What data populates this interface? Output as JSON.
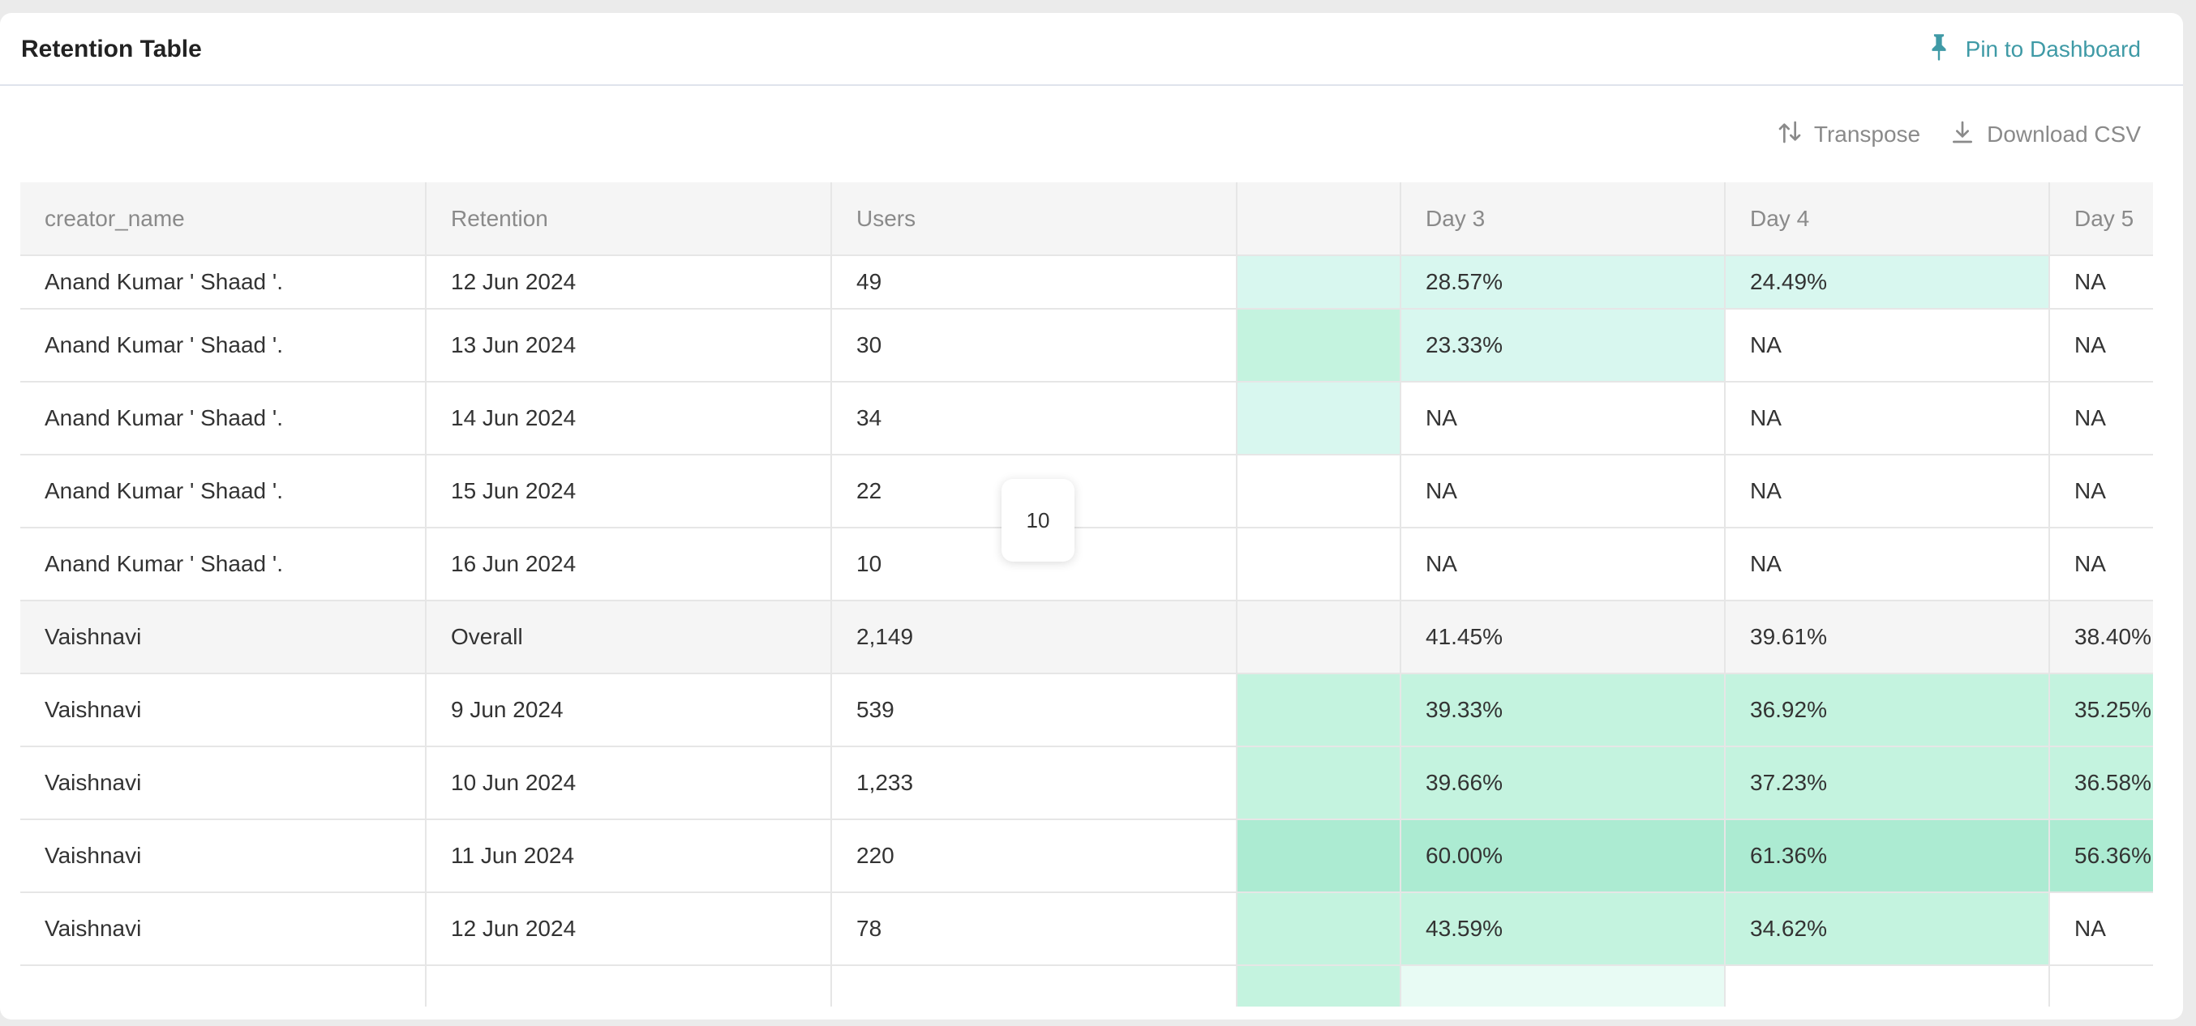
{
  "card": {
    "title": "Retention Table",
    "pin_label": "Pin to Dashboard"
  },
  "toolbar": {
    "transpose_label": "Transpose",
    "download_label": "Download CSV"
  },
  "colors": {
    "accent": "#3f9aa6",
    "cell_light": "#d8f7ef",
    "cell_mid": "#c4f3df",
    "cell_strong": "#acebd2",
    "cell_faint": "#e8fbf4"
  },
  "table": {
    "columns": [
      "creator_name",
      "Retention",
      "Users",
      "",
      "Day 3",
      "Day 4",
      "Day 5"
    ],
    "rows": [
      {
        "cells": [
          "Anand Kumar ' Shaad '.",
          "12 Jun 2024",
          "49",
          "",
          "28.57%",
          "24.49%",
          "NA"
        ],
        "shade": [
          "",
          "",
          "",
          "light",
          "light",
          "light",
          ""
        ]
      },
      {
        "cells": [
          "Anand Kumar ' Shaad '.",
          "13 Jun 2024",
          "30",
          "",
          "23.33%",
          "NA",
          "NA"
        ],
        "shade": [
          "",
          "",
          "",
          "mid",
          "light",
          "",
          ""
        ]
      },
      {
        "cells": [
          "Anand Kumar ' Shaad '.",
          "14 Jun 2024",
          "34",
          "",
          "NA",
          "NA",
          "NA"
        ],
        "shade": [
          "",
          "",
          "",
          "light",
          "",
          "",
          ""
        ]
      },
      {
        "cells": [
          "Anand Kumar ' Shaad '.",
          "15 Jun 2024",
          "22",
          "",
          "NA",
          "NA",
          "NA"
        ],
        "shade": [
          "",
          "",
          "",
          "",
          "",
          "",
          ""
        ]
      },
      {
        "cells": [
          "Anand Kumar ' Shaad '.",
          "16 Jun 2024",
          "10",
          "",
          "NA",
          "NA",
          "NA"
        ],
        "shade": [
          "",
          "",
          "",
          "",
          "",
          "",
          ""
        ]
      },
      {
        "cells": [
          "Vaishnavi",
          "Overall",
          "2,149",
          "",
          "41.45%",
          "39.61%",
          "38.40%"
        ],
        "shade": [
          "",
          "",
          "",
          "",
          "",
          "",
          ""
        ],
        "overall": true
      },
      {
        "cells": [
          "Vaishnavi",
          "9 Jun 2024",
          "539",
          "",
          "39.33%",
          "36.92%",
          "35.25%"
        ],
        "shade": [
          "",
          "",
          "",
          "mid",
          "mid",
          "mid",
          "mid"
        ]
      },
      {
        "cells": [
          "Vaishnavi",
          "10 Jun 2024",
          "1,233",
          "",
          "39.66%",
          "37.23%",
          "36.58%"
        ],
        "shade": [
          "",
          "",
          "",
          "mid",
          "mid",
          "mid",
          "mid"
        ]
      },
      {
        "cells": [
          "Vaishnavi",
          "11 Jun 2024",
          "220",
          "",
          "60.00%",
          "61.36%",
          "56.36%"
        ],
        "shade": [
          "",
          "",
          "",
          "strong",
          "strong",
          "strong",
          "strong"
        ]
      },
      {
        "cells": [
          "Vaishnavi",
          "12 Jun 2024",
          "78",
          "",
          "43.59%",
          "34.62%",
          "NA"
        ],
        "shade": [
          "",
          "",
          "",
          "mid",
          "mid",
          "mid",
          ""
        ]
      },
      {
        "cells": [
          "",
          "",
          "",
          "",
          "",
          "",
          ""
        ],
        "shade": [
          "",
          "",
          "",
          "mid",
          "faint",
          "",
          ""
        ]
      }
    ]
  },
  "tooltip": {
    "value": "10"
  }
}
